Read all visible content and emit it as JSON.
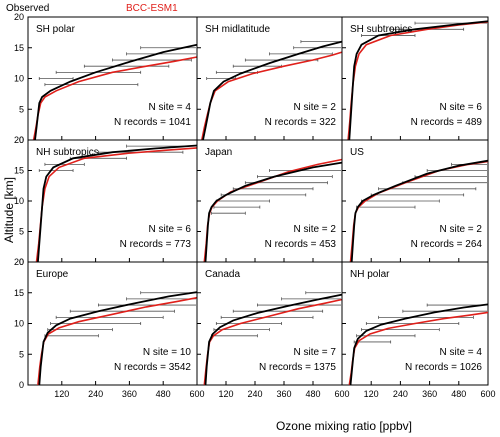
{
  "legend": {
    "observed": {
      "label": "Observed",
      "color": "#000000"
    },
    "model": {
      "label": "BCC-ESM1",
      "color": "#e0201b"
    }
  },
  "axes": {
    "xlabel": "Ozone mixing ratio [ppbv]",
    "ylabel": "Altitude [km]",
    "xticks": [
      "120",
      "240",
      "360",
      "480",
      "600"
    ],
    "yticks": [
      "0",
      "5",
      "10",
      "15",
      "20"
    ]
  },
  "chart_data": {
    "type": "line",
    "layout": "3x3 small multiples",
    "xlabel": "Ozone mixing ratio [ppbv]",
    "ylabel": "Altitude [km]",
    "xlim": [
      0,
      600
    ],
    "ylim": [
      0,
      20
    ],
    "grid": false,
    "legend_position": "top-left, above panels",
    "series_names": [
      "Observed",
      "BCC-ESM1"
    ],
    "panels": [
      {
        "title": "SH polar",
        "n_site": "N site = 4",
        "n_records": "N records = 1041",
        "observed": [
          [
            25,
            0
          ],
          [
            30,
            2
          ],
          [
            35,
            4
          ],
          [
            40,
            6
          ],
          [
            50,
            7
          ],
          [
            80,
            8
          ],
          [
            150,
            9.5
          ],
          [
            240,
            11
          ],
          [
            360,
            12.7
          ],
          [
            480,
            14.3
          ],
          [
            600,
            15.5
          ]
        ],
        "model": [
          [
            20,
            0
          ],
          [
            28,
            2
          ],
          [
            35,
            4
          ],
          [
            45,
            6
          ],
          [
            60,
            7
          ],
          [
            100,
            8
          ],
          [
            180,
            9.5
          ],
          [
            300,
            11
          ],
          [
            420,
            12
          ],
          [
            520,
            12.8
          ],
          [
            600,
            13.5
          ]
        ],
        "errorbars": [
          [
            9,
            60,
            390
          ],
          [
            10,
            40,
            160
          ],
          [
            11,
            100,
            400
          ],
          [
            12,
            200,
            500
          ],
          [
            13,
            300,
            580
          ],
          [
            14,
            350,
            600
          ],
          [
            15,
            400,
            600
          ]
        ]
      },
      {
        "title": "SH midlatitude",
        "n_site": "N site = 2",
        "n_records": "N records = 322",
        "observed": [
          [
            25,
            0
          ],
          [
            35,
            2
          ],
          [
            45,
            4
          ],
          [
            55,
            6
          ],
          [
            70,
            8
          ],
          [
            110,
            9.5
          ],
          [
            180,
            10.8
          ],
          [
            300,
            12.5
          ],
          [
            420,
            14
          ],
          [
            520,
            15.2
          ],
          [
            600,
            16
          ]
        ],
        "model": [
          [
            20,
            0
          ],
          [
            30,
            2
          ],
          [
            42,
            4
          ],
          [
            55,
            6
          ],
          [
            75,
            8
          ],
          [
            130,
            9.5
          ],
          [
            230,
            10.8
          ],
          [
            360,
            12
          ],
          [
            480,
            13
          ],
          [
            560,
            13.8
          ],
          [
            600,
            14.3
          ]
        ],
        "errorbars": [
          [
            10,
            40,
            160
          ],
          [
            11,
            80,
            250
          ],
          [
            12,
            150,
            350
          ],
          [
            13,
            200,
            500
          ],
          [
            14,
            300,
            560
          ],
          [
            15,
            400,
            600
          ],
          [
            16,
            430,
            600
          ]
        ]
      },
      {
        "title": "SH subtropics",
        "n_site": "N site = 6",
        "n_records": "N records = 489",
        "observed": [
          [
            30,
            0
          ],
          [
            35,
            3
          ],
          [
            40,
            6
          ],
          [
            45,
            9
          ],
          [
            50,
            12
          ],
          [
            60,
            14
          ],
          [
            80,
            15.5
          ],
          [
            150,
            17
          ],
          [
            300,
            18
          ],
          [
            450,
            18.7
          ],
          [
            600,
            19.3
          ]
        ],
        "model": [
          [
            25,
            0
          ],
          [
            32,
            3
          ],
          [
            38,
            6
          ],
          [
            45,
            9
          ],
          [
            55,
            12
          ],
          [
            70,
            14
          ],
          [
            100,
            15.5
          ],
          [
            200,
            17
          ],
          [
            350,
            18
          ],
          [
            480,
            18.7
          ],
          [
            600,
            19.2
          ]
        ],
        "errorbars": [
          [
            17,
            80,
            300
          ],
          [
            18,
            200,
            500
          ],
          [
            19,
            300,
            600
          ]
        ]
      },
      {
        "title": "NH subtropics",
        "n_site": "N site = 6",
        "n_records": "N records = 773",
        "observed": [
          [
            35,
            0
          ],
          [
            40,
            3
          ],
          [
            45,
            6
          ],
          [
            50,
            9
          ],
          [
            55,
            12
          ],
          [
            65,
            14
          ],
          [
            90,
            15.5
          ],
          [
            160,
            17
          ],
          [
            300,
            18
          ],
          [
            450,
            18.6
          ],
          [
            600,
            19.1
          ]
        ],
        "model": [
          [
            30,
            0
          ],
          [
            38,
            3
          ],
          [
            44,
            6
          ],
          [
            50,
            9
          ],
          [
            60,
            12
          ],
          [
            75,
            14
          ],
          [
            110,
            15.5
          ],
          [
            200,
            17
          ],
          [
            350,
            17.8
          ],
          [
            480,
            18.3
          ],
          [
            600,
            18.7
          ]
        ],
        "errorbars": [
          [
            15,
            40,
            160
          ],
          [
            16,
            60,
            200
          ],
          [
            17,
            150,
            350
          ],
          [
            18,
            250,
            550
          ],
          [
            19,
            350,
            600
          ]
        ]
      },
      {
        "title": "Japan",
        "n_site": "N site = 2",
        "n_records": "N records = 453",
        "observed": [
          [
            35,
            0
          ],
          [
            40,
            3
          ],
          [
            45,
            6
          ],
          [
            50,
            8
          ],
          [
            60,
            9
          ],
          [
            80,
            10
          ],
          [
            120,
            11
          ],
          [
            200,
            12.5
          ],
          [
            320,
            14
          ],
          [
            480,
            15.5
          ],
          [
            600,
            16.3
          ]
        ],
        "model": [
          [
            30,
            0
          ],
          [
            38,
            3
          ],
          [
            44,
            6
          ],
          [
            52,
            8
          ],
          [
            62,
            9
          ],
          [
            85,
            10
          ],
          [
            140,
            11.5
          ],
          [
            250,
            13
          ],
          [
            380,
            14.8
          ],
          [
            500,
            16
          ],
          [
            600,
            16.8
          ]
        ],
        "errorbars": [
          [
            8,
            60,
            200
          ],
          [
            9,
            70,
            260
          ],
          [
            10,
            80,
            300
          ],
          [
            11,
            100,
            450
          ],
          [
            12,
            150,
            480
          ],
          [
            13,
            200,
            540
          ],
          [
            14,
            250,
            560
          ],
          [
            15,
            300,
            600
          ]
        ]
      },
      {
        "title": "US",
        "n_site": "N site = 2",
        "n_records": "N records = 264",
        "observed": [
          [
            40,
            0
          ],
          [
            45,
            3
          ],
          [
            50,
            6
          ],
          [
            55,
            8
          ],
          [
            65,
            9
          ],
          [
            85,
            10
          ],
          [
            130,
            11
          ],
          [
            220,
            12.5
          ],
          [
            350,
            14.5
          ],
          [
            480,
            15.8
          ],
          [
            600,
            16.6
          ]
        ],
        "model": [
          [
            35,
            0
          ],
          [
            42,
            3
          ],
          [
            48,
            6
          ],
          [
            55,
            8
          ],
          [
            68,
            9
          ],
          [
            95,
            10
          ],
          [
            150,
            11.3
          ],
          [
            260,
            13
          ],
          [
            400,
            15
          ],
          [
            520,
            16
          ],
          [
            600,
            16.5
          ]
        ],
        "errorbars": [
          [
            9,
            60,
            300
          ],
          [
            10,
            80,
            400
          ],
          [
            11,
            120,
            500
          ],
          [
            12,
            150,
            550
          ],
          [
            13,
            250,
            600
          ],
          [
            14,
            300,
            600
          ],
          [
            15,
            350,
            600
          ],
          [
            16,
            450,
            600
          ]
        ]
      },
      {
        "title": "Europe",
        "n_site": "N site = 10",
        "n_records": "N records = 3542",
        "observed": [
          [
            40,
            0
          ],
          [
            45,
            3
          ],
          [
            50,
            5
          ],
          [
            55,
            7
          ],
          [
            70,
            8.5
          ],
          [
            100,
            9.7
          ],
          [
            150,
            10.8
          ],
          [
            250,
            12
          ],
          [
            380,
            13.3
          ],
          [
            500,
            14.4
          ],
          [
            600,
            15.1
          ]
        ],
        "model": [
          [
            35,
            0
          ],
          [
            42,
            3
          ],
          [
            48,
            5
          ],
          [
            56,
            7
          ],
          [
            72,
            8.3
          ],
          [
            110,
            9.3
          ],
          [
            180,
            10.3
          ],
          [
            300,
            11.5
          ],
          [
            420,
            12.7
          ],
          [
            530,
            13.6
          ],
          [
            600,
            14.2
          ]
        ],
        "errorbars": [
          [
            8,
            60,
            250
          ],
          [
            9,
            70,
            300
          ],
          [
            10,
            80,
            400
          ],
          [
            11,
            100,
            480
          ],
          [
            12,
            150,
            520
          ],
          [
            13,
            250,
            600
          ],
          [
            14,
            350,
            600
          ],
          [
            15,
            400,
            600
          ]
        ]
      },
      {
        "title": "Canada",
        "n_site": "N site = 7",
        "n_records": "N records = 1375",
        "observed": [
          [
            35,
            0
          ],
          [
            40,
            3
          ],
          [
            45,
            5
          ],
          [
            50,
            7
          ],
          [
            65,
            8.3
          ],
          [
            95,
            9.4
          ],
          [
            150,
            10.5
          ],
          [
            250,
            11.7
          ],
          [
            380,
            12.9
          ],
          [
            500,
            13.9
          ],
          [
            600,
            14.7
          ]
        ],
        "model": [
          [
            30,
            0
          ],
          [
            38,
            3
          ],
          [
            44,
            5
          ],
          [
            52,
            7
          ],
          [
            68,
            8
          ],
          [
            105,
            9
          ],
          [
            180,
            10
          ],
          [
            300,
            11.2
          ],
          [
            420,
            12.4
          ],
          [
            530,
            13.3
          ],
          [
            600,
            13.9
          ]
        ],
        "errorbars": [
          [
            8,
            60,
            250
          ],
          [
            9,
            70,
            300
          ],
          [
            10,
            80,
            350
          ],
          [
            11,
            100,
            480
          ],
          [
            12,
            150,
            520
          ],
          [
            13,
            250,
            600
          ],
          [
            14,
            350,
            600
          ],
          [
            15,
            450,
            600
          ]
        ]
      },
      {
        "title": "NH polar",
        "n_site": "N site = 4",
        "n_records": "N records = 1026",
        "observed": [
          [
            35,
            0
          ],
          [
            40,
            2
          ],
          [
            45,
            4
          ],
          [
            50,
            6
          ],
          [
            65,
            7.5
          ],
          [
            100,
            8.8
          ],
          [
            160,
            9.8
          ],
          [
            260,
            10.8
          ],
          [
            380,
            11.8
          ],
          [
            500,
            12.6
          ],
          [
            600,
            13.1
          ]
        ],
        "model": [
          [
            30,
            0
          ],
          [
            38,
            2
          ],
          [
            44,
            4
          ],
          [
            52,
            6
          ],
          [
            70,
            7.2
          ],
          [
            115,
            8.3
          ],
          [
            190,
            9.2
          ],
          [
            300,
            10
          ],
          [
            420,
            10.8
          ],
          [
            530,
            11.4
          ],
          [
            600,
            11.8
          ]
        ],
        "errorbars": [
          [
            7,
            50,
            200
          ],
          [
            8,
            60,
            300
          ],
          [
            9,
            80,
            400
          ],
          [
            10,
            100,
            480
          ],
          [
            11,
            150,
            540
          ],
          [
            12,
            250,
            600
          ],
          [
            13,
            350,
            600
          ]
        ]
      }
    ]
  }
}
